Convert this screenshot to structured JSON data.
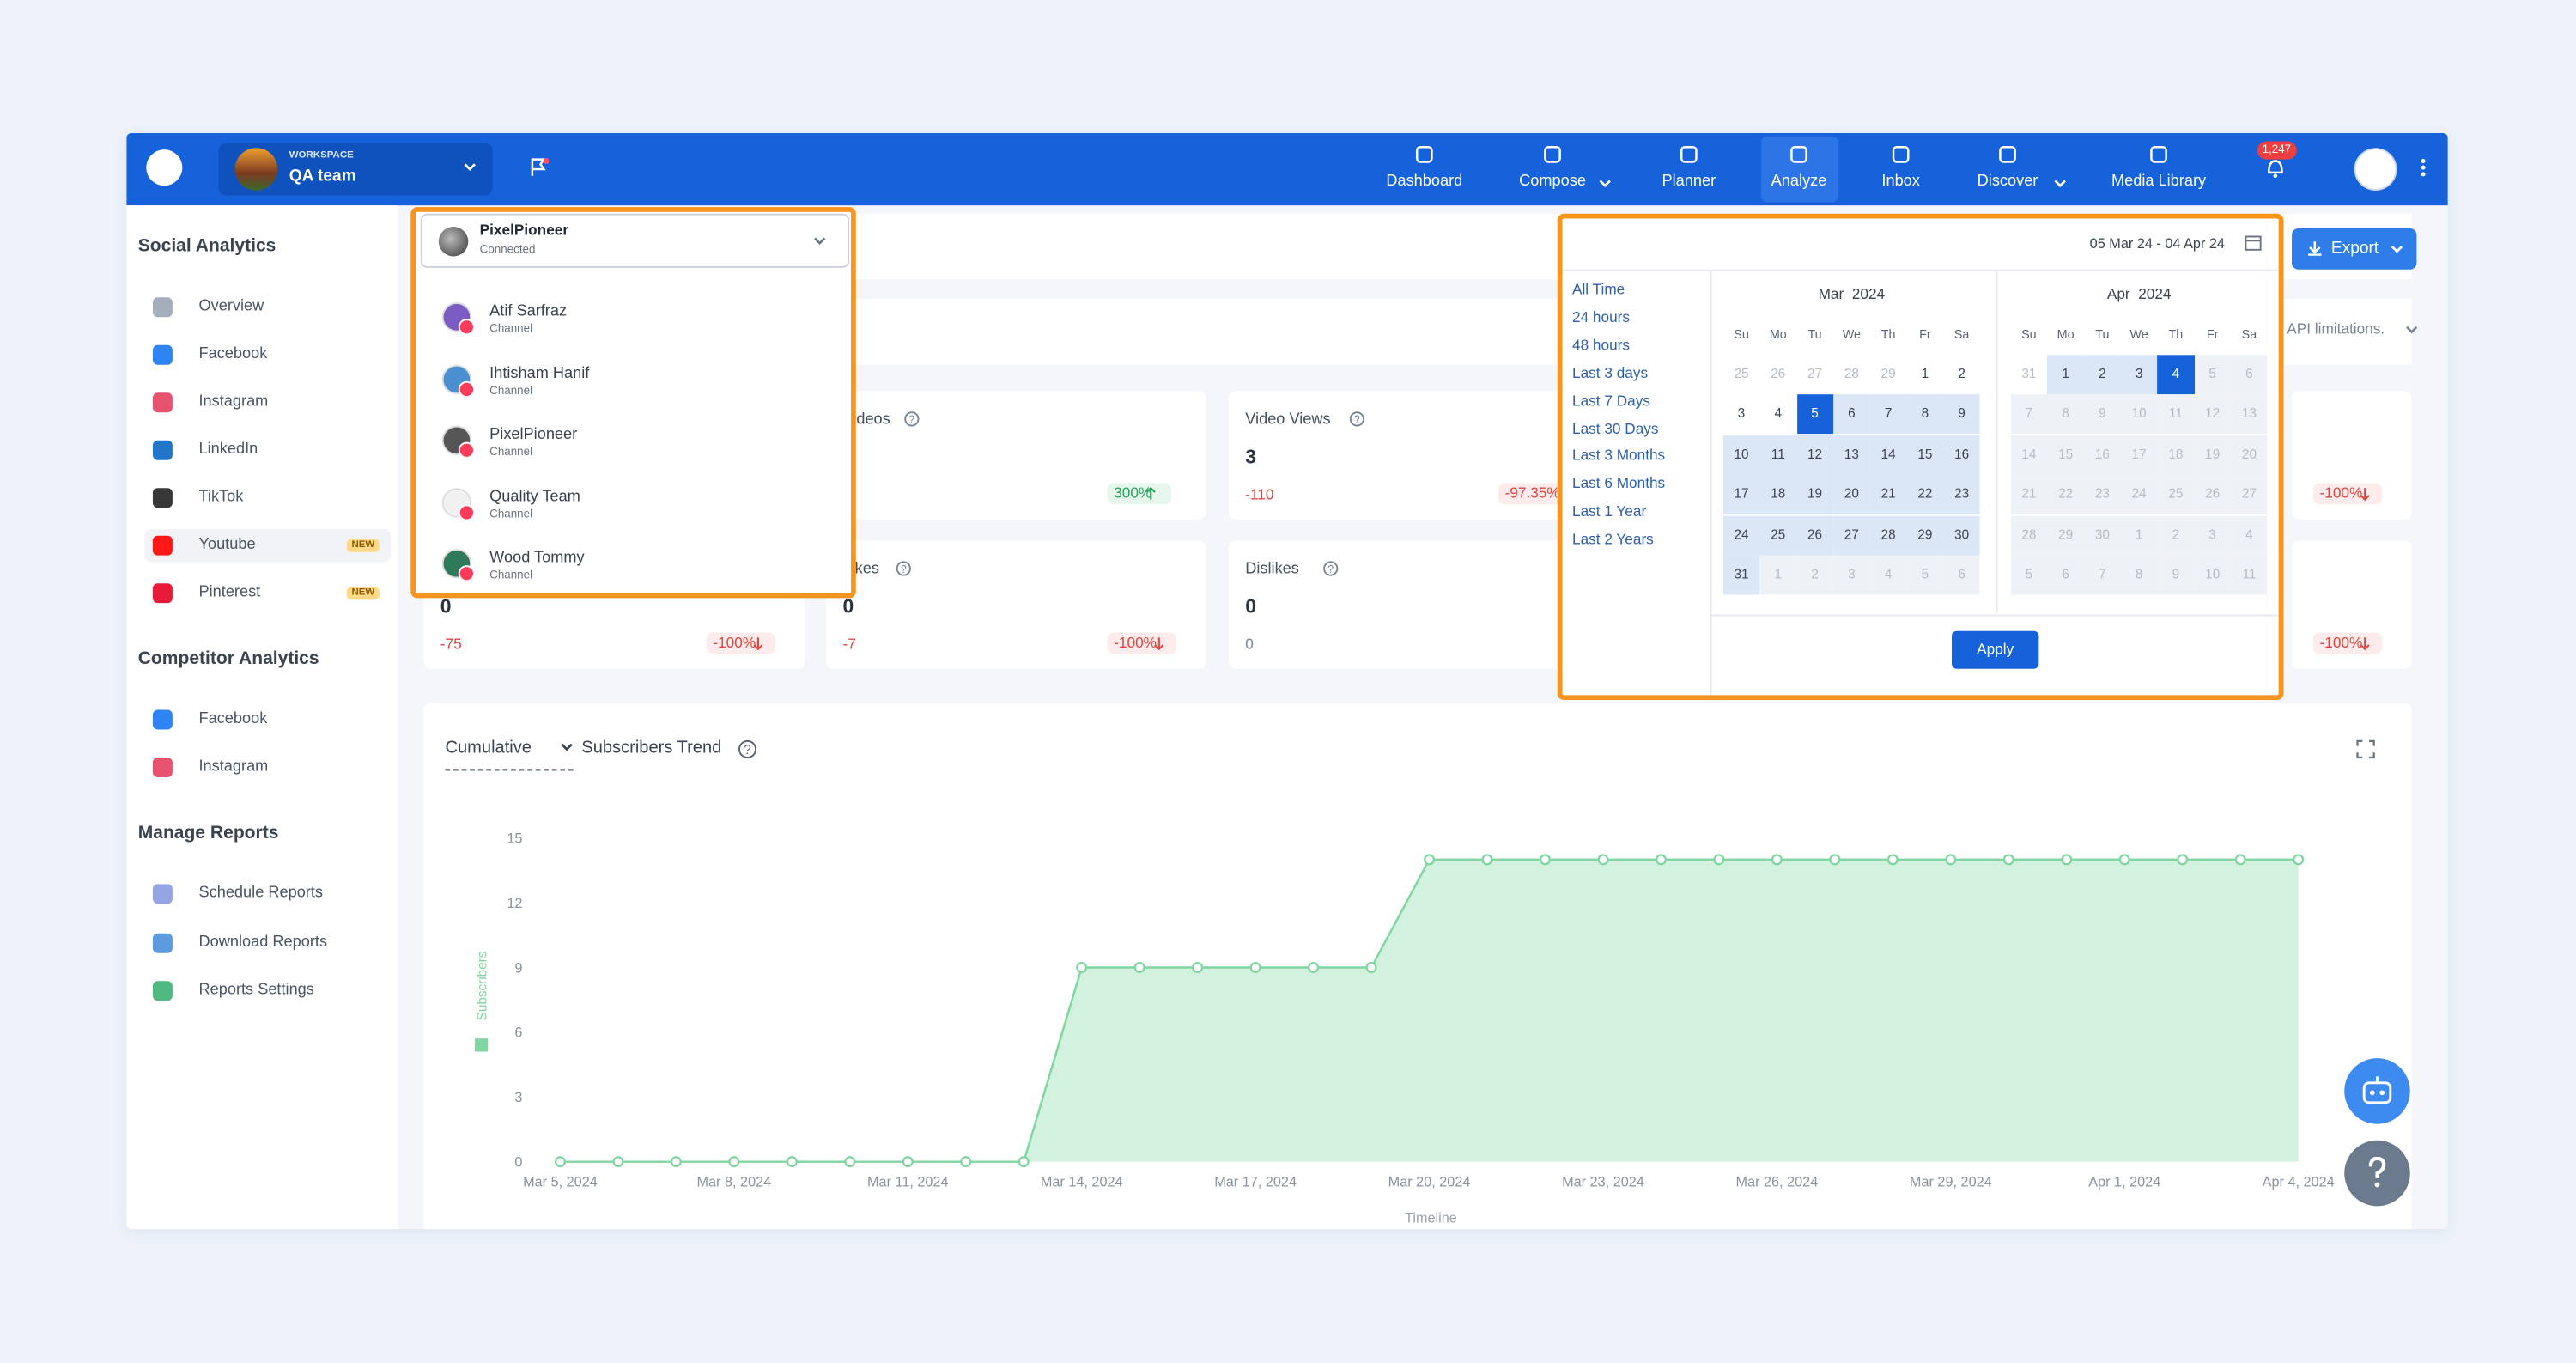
{
  "nav": {
    "workspace_label": "WORKSPACE",
    "workspace": "QA team",
    "items": [
      "Dashboard",
      "Compose",
      "Planner",
      "Analyze",
      "Inbox",
      "Discover",
      "Media Library"
    ],
    "notifications": "1,247"
  },
  "sidebar": {
    "sections": [
      {
        "title": "Social Analytics",
        "items": [
          {
            "label": "Overview"
          },
          {
            "label": "Facebook"
          },
          {
            "label": "Instagram"
          },
          {
            "label": "LinkedIn"
          },
          {
            "label": "TikTok"
          },
          {
            "label": "Youtube",
            "badge": "NEW"
          },
          {
            "label": "Pinterest",
            "badge": "NEW"
          }
        ]
      },
      {
        "title": "Competitor Analytics",
        "items": [
          {
            "label": "Facebook"
          },
          {
            "label": "Instagram"
          }
        ]
      },
      {
        "title": "Manage Reports",
        "items": [
          {
            "label": "Schedule Reports"
          },
          {
            "label": "Download Reports"
          },
          {
            "label": "Reports Settings"
          }
        ]
      }
    ]
  },
  "channel_dropdown": {
    "selected": {
      "name": "PixelPioneer",
      "status": "Connected"
    },
    "options": [
      {
        "name": "Atif Sarfraz",
        "type": "Channel"
      },
      {
        "name": "Ihtisham Hanif",
        "type": "Channel"
      },
      {
        "name": "PixelPioneer",
        "type": "Channel"
      },
      {
        "name": "Quality Team",
        "type": "Channel"
      },
      {
        "name": "Wood Tommy",
        "type": "Channel"
      }
    ]
  },
  "date_picker": {
    "range": "05 Mar 24 - 04 Apr 24",
    "presets": [
      "All Time",
      "24 hours",
      "48 hours",
      "Last 3 days",
      "Last 7 Days",
      "Last 30 Days",
      "Last 3 Months",
      "Last 6 Months",
      "Last 1 Year",
      "Last 2 Years"
    ],
    "calendars": [
      {
        "month": "Mar  2024",
        "weekdays": [
          "Su",
          "Mo",
          "Tu",
          "We",
          "Th",
          "Fr",
          "Sa"
        ],
        "days": [
          25,
          26,
          27,
          28,
          29,
          1,
          2,
          3,
          4,
          5,
          6,
          7,
          8,
          9,
          10,
          11,
          12,
          13,
          14,
          15,
          16,
          17,
          18,
          19,
          20,
          21,
          22,
          23,
          24,
          25,
          26,
          27,
          28,
          29,
          30,
          31,
          1,
          2,
          3,
          4,
          5,
          6
        ]
      },
      {
        "month": "Apr  2024",
        "weekdays": [
          "Su",
          "Mo",
          "Tu",
          "We",
          "Th",
          "Fr",
          "Sa"
        ],
        "days": [
          31,
          1,
          2,
          3,
          4,
          5,
          6,
          7,
          8,
          9,
          10,
          11,
          12,
          13,
          14,
          15,
          16,
          17,
          18,
          19,
          20,
          21,
          22,
          23,
          24,
          25,
          26,
          27,
          28,
          29,
          30,
          1,
          2,
          3,
          4,
          5,
          6,
          7,
          8,
          9,
          10,
          11
        ]
      }
    ],
    "apply": "Apply"
  },
  "export": "Export",
  "notice": "API limitations.",
  "metrics": [
    {
      "label": "Videos",
      "change": "300%"
    },
    {
      "label": "Video Views",
      "value": 3,
      "delta": -110,
      "change": "-97.35%"
    },
    {
      "change": "-100%"
    },
    {
      "value": 0,
      "delta": -75,
      "change": "-100%"
    },
    {
      "label": "Likes",
      "value": 0,
      "delta": -7,
      "change": "-100%"
    },
    {
      "label": "Dislikes",
      "value": 0,
      "delta": 0
    },
    {
      "change": "-100%"
    }
  ],
  "chart_data": {
    "type": "area",
    "mode": "Cumulative",
    "title": "Subscribers Trend",
    "y_label": "Subscribers",
    "x_label": "Timeline",
    "categories": [
      "Mar 5, 2024",
      null,
      null,
      "Mar 8, 2024",
      null,
      null,
      "Mar 11, 2024",
      null,
      null,
      "Mar 14, 2024",
      null,
      null,
      "Mar 17, 2024",
      null,
      null,
      "Mar 20, 2024",
      null,
      null,
      "Mar 23, 2024",
      null,
      null,
      "Mar 26, 2024",
      null,
      null,
      "Mar 29, 2024",
      null,
      null,
      "Apr 1, 2024",
      null,
      null,
      "Apr 4, 2024"
    ],
    "values": [
      0,
      0,
      0,
      0,
      0,
      0,
      0,
      0,
      0,
      9,
      9,
      9,
      9,
      9,
      9,
      14,
      14,
      14,
      14,
      14,
      14,
      14,
      14,
      14,
      14,
      14,
      14,
      14,
      14,
      14,
      14
    ],
    "ylim": [
      0,
      15
    ],
    "yticks": [
      0,
      3,
      6,
      9,
      12,
      15
    ],
    "color": "#7fd6a0"
  }
}
